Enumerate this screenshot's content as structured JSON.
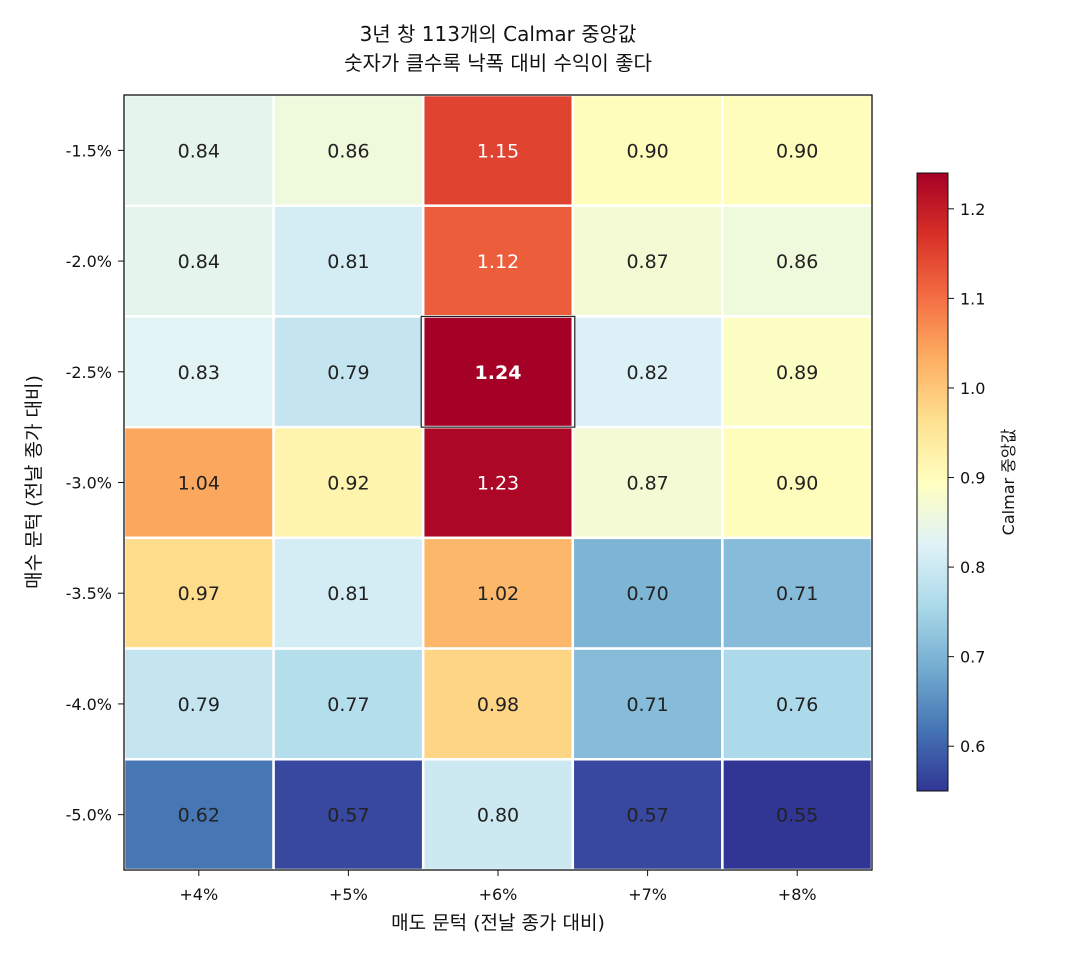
{
  "chart_data": {
    "type": "heatmap",
    "title_lines": [
      "3년 창 113개의 Calmar 중앙값",
      "숫자가 클수록 낙폭 대비 수익이 좋다"
    ],
    "xlabel": "매도 문턱 (전날 종가 대비)",
    "ylabel": "매수 문턱 (전날 종가 대비)",
    "x_categories": [
      "+4%",
      "+5%",
      "+6%",
      "+7%",
      "+8%"
    ],
    "y_categories": [
      "-1.5%",
      "-2.0%",
      "-2.5%",
      "-3.0%",
      "-3.5%",
      "-4.0%",
      "-5.0%"
    ],
    "values": [
      [
        0.84,
        0.86,
        1.15,
        0.9,
        0.9
      ],
      [
        0.84,
        0.81,
        1.12,
        0.87,
        0.86
      ],
      [
        0.83,
        0.79,
        1.24,
        0.82,
        0.89
      ],
      [
        1.04,
        0.92,
        1.23,
        0.87,
        0.9
      ],
      [
        0.97,
        0.81,
        1.02,
        0.7,
        0.71
      ],
      [
        0.79,
        0.77,
        0.98,
        0.71,
        0.76
      ],
      [
        0.62,
        0.57,
        0.8,
        0.57,
        0.55
      ]
    ],
    "value_labels": [
      [
        "0.84",
        "0.86",
        "1.15",
        "0.90",
        "0.90"
      ],
      [
        "0.84",
        "0.81",
        "1.12",
        "0.87",
        "0.86"
      ],
      [
        "0.83",
        "0.79",
        "1.24",
        "0.82",
        "0.89"
      ],
      [
        "1.04",
        "0.92",
        "1.23",
        "0.87",
        "0.90"
      ],
      [
        "0.97",
        "0.81",
        "1.02",
        "0.70",
        "0.71"
      ],
      [
        "0.79",
        "0.77",
        "0.98",
        "0.71",
        "0.76"
      ],
      [
        "0.62",
        "0.57",
        "0.80",
        "0.57",
        "0.55"
      ]
    ],
    "highlight_cell": {
      "row": 2,
      "col": 2
    },
    "colormap": "RdYlBu_r",
    "colorbar": {
      "label": "Calmar 중앙값",
      "min": 0.55,
      "max": 1.24,
      "ticks": [
        0.6,
        0.7,
        0.8,
        0.9,
        1.0,
        1.1,
        1.2
      ],
      "tick_labels": [
        "0.6",
        "0.7",
        "0.8",
        "0.9",
        "1.0",
        "1.1",
        "1.2"
      ]
    }
  }
}
